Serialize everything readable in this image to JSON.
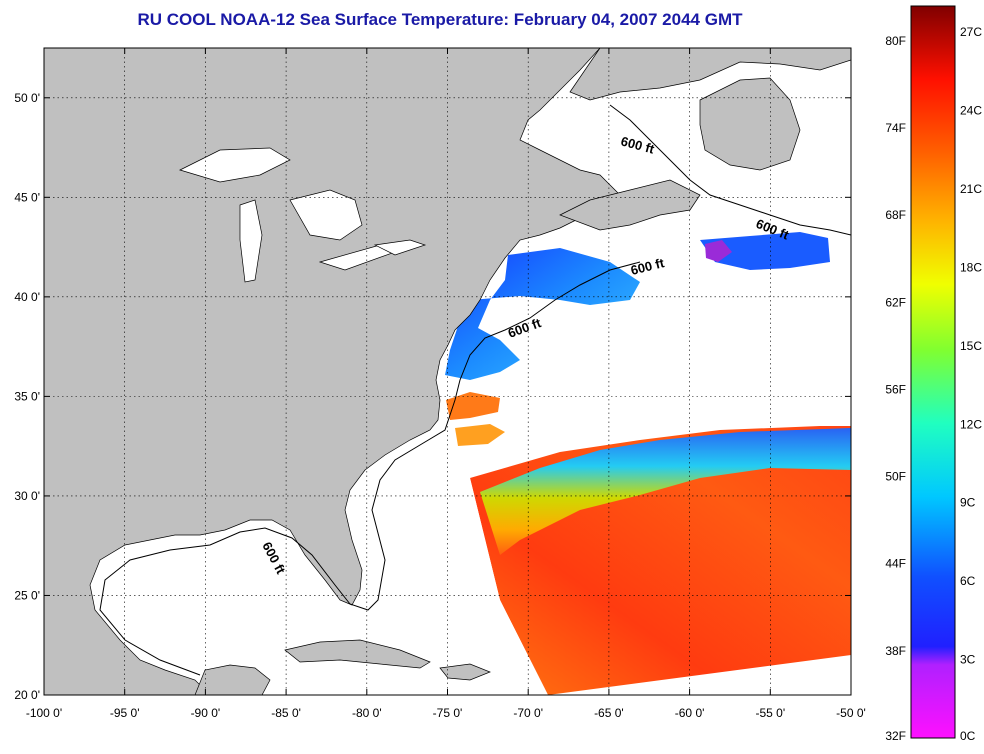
{
  "title": "RU COOL  NOAA-12  Sea Surface Temperature:  February 04, 2007 2044 GMT",
  "colors": {
    "title": "#1a1aa6",
    "land": "#c0c0c0",
    "cloud": "#ffffff",
    "grid": "#000000"
  },
  "axes": {
    "x_ticks": [
      "-100 0'",
      "-95 0'",
      "-90 0'",
      "-85 0'",
      "-80 0'",
      "-75 0'",
      "-70 0'",
      "-65 0'",
      "-60 0'",
      "-55 0'",
      "-50 0'"
    ],
    "y_ticks": [
      "50 0'",
      "45 0'",
      "40 0'",
      "35 0'",
      "30 0'",
      "25 0'",
      "20 0'"
    ],
    "lon_range": [
      -100,
      -50
    ],
    "lat_range": [
      20,
      52.5
    ],
    "grid": true
  },
  "contour": {
    "label": "600 ft",
    "labels": [
      "600 ft",
      "600 ft",
      "600 ft",
      "600 ft",
      "600 ft"
    ]
  },
  "colorbar": {
    "fahrenheit": [
      "80F",
      "74F",
      "68F",
      "62F",
      "56F",
      "50F",
      "44F",
      "38F",
      "32F"
    ],
    "celsius": [
      "27C",
      "24C",
      "21C",
      "18C",
      "15C",
      "12C",
      "9C",
      "6C",
      "3C",
      "0C"
    ],
    "range_c": [
      0,
      28
    ],
    "icon": "colorbar-gradient"
  }
}
